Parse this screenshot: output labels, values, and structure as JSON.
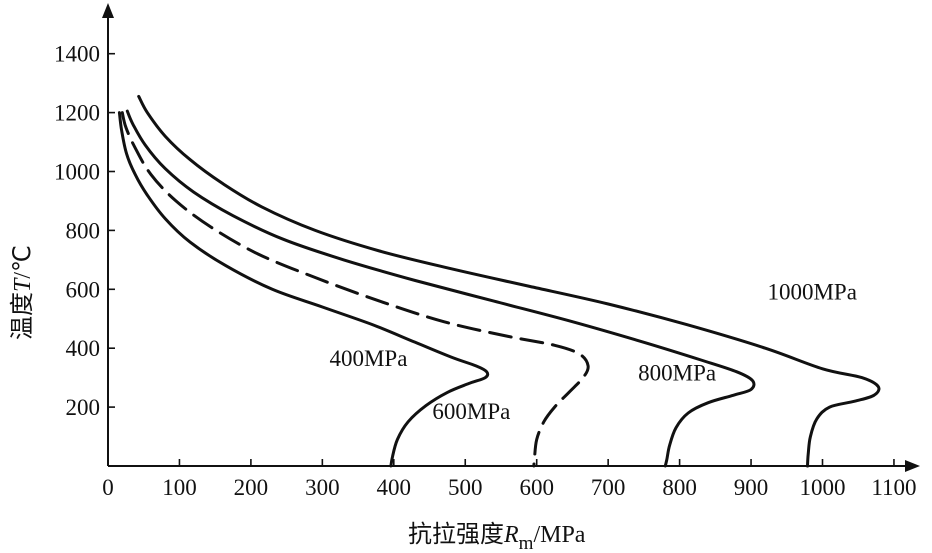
{
  "chart_data": {
    "type": "line",
    "xlabel": {
      "prefix": "抗拉强度",
      "symbol": "R",
      "subscript": "m",
      "unit": "/MPa"
    },
    "ylabel": {
      "prefix": "温度",
      "symbol": "T",
      "unit": "/℃"
    },
    "x_ticks": [
      0,
      100,
      200,
      300,
      400,
      500,
      600,
      700,
      800,
      900,
      1000,
      1100
    ],
    "y_ticks": [
      200,
      400,
      600,
      800,
      1000,
      1200,
      1400
    ],
    "xlim": [
      0,
      1120
    ],
    "ylim": [
      0,
      1550
    ],
    "grid": false,
    "series": [
      {
        "name": "400MPa",
        "style": "solid",
        "points": [
          [
            16,
            1200
          ],
          [
            19,
            1140
          ],
          [
            26,
            1060
          ],
          [
            38,
            990
          ],
          [
            55,
            920
          ],
          [
            80,
            840
          ],
          [
            115,
            760
          ],
          [
            165,
            680
          ],
          [
            230,
            600
          ],
          [
            300,
            540
          ],
          [
            370,
            480
          ],
          [
            430,
            420
          ],
          [
            480,
            370
          ],
          [
            515,
            340
          ],
          [
            530,
            320
          ],
          [
            528,
            300
          ],
          [
            505,
            280
          ],
          [
            475,
            250
          ],
          [
            445,
            205
          ],
          [
            420,
            150
          ],
          [
            405,
            90
          ],
          [
            398,
            30
          ],
          [
            396,
            0
          ]
        ]
      },
      {
        "name": "600MPa",
        "style": "dashed",
        "points": [
          [
            20,
            1200
          ],
          [
            25,
            1150
          ],
          [
            38,
            1080
          ],
          [
            60,
            990
          ],
          [
            95,
            900
          ],
          [
            145,
            810
          ],
          [
            210,
            720
          ],
          [
            290,
            640
          ],
          [
            380,
            560
          ],
          [
            470,
            490
          ],
          [
            560,
            440
          ],
          [
            625,
            410
          ],
          [
            660,
            380
          ],
          [
            672,
            340
          ],
          [
            665,
            300
          ],
          [
            645,
            250
          ],
          [
            625,
            200
          ],
          [
            610,
            150
          ],
          [
            600,
            90
          ],
          [
            597,
            30
          ],
          [
            596,
            0
          ]
        ]
      },
      {
        "name": "800MPa",
        "style": "solid",
        "points": [
          [
            27,
            1205
          ],
          [
            35,
            1160
          ],
          [
            52,
            1090
          ],
          [
            80,
            1010
          ],
          [
            120,
            930
          ],
          [
            175,
            850
          ],
          [
            245,
            770
          ],
          [
            330,
            700
          ],
          [
            430,
            630
          ],
          [
            540,
            560
          ],
          [
            650,
            490
          ],
          [
            750,
            420
          ],
          [
            830,
            360
          ],
          [
            880,
            320
          ],
          [
            902,
            290
          ],
          [
            900,
            260
          ],
          [
            875,
            240
          ],
          [
            840,
            215
          ],
          [
            812,
            180
          ],
          [
            795,
            130
          ],
          [
            786,
            70
          ],
          [
            782,
            20
          ],
          [
            780,
            0
          ]
        ]
      },
      {
        "name": "1000MPa",
        "style": "solid",
        "points": [
          [
            43,
            1255
          ],
          [
            55,
            1200
          ],
          [
            80,
            1120
          ],
          [
            115,
            1040
          ],
          [
            160,
            960
          ],
          [
            215,
            880
          ],
          [
            290,
            800
          ],
          [
            380,
            730
          ],
          [
            480,
            670
          ],
          [
            590,
            610
          ],
          [
            700,
            550
          ],
          [
            810,
            480
          ],
          [
            920,
            400
          ],
          [
            1000,
            330
          ],
          [
            1055,
            300
          ],
          [
            1078,
            270
          ],
          [
            1072,
            240
          ],
          [
            1045,
            220
          ],
          [
            1010,
            200
          ],
          [
            992,
            160
          ],
          [
            983,
            100
          ],
          [
            980,
            40
          ],
          [
            979,
            0
          ]
        ]
      }
    ],
    "labels": [
      {
        "series": "400MPa",
        "text": "400MPa",
        "x": 310,
        "y": 340
      },
      {
        "series": "600MPa",
        "text": "600MPa",
        "x": 454,
        "y": 160
      },
      {
        "series": "800MPa",
        "text": "800MPa",
        "x": 742,
        "y": 290
      },
      {
        "series": "1000MPa",
        "text": "1000MPa",
        "x": 923,
        "y": 565
      }
    ]
  }
}
